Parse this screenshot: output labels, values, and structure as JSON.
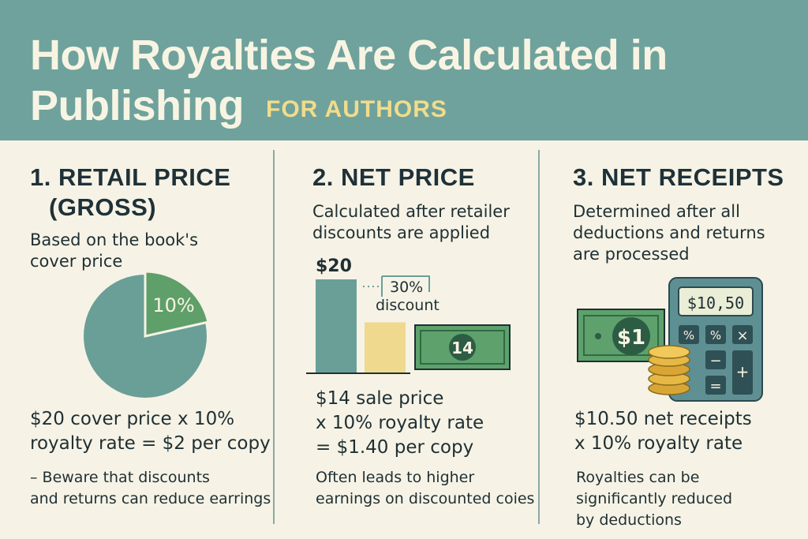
{
  "header": {
    "title_line1": "How Royalties Are Calculated in",
    "title_line2": "Publishing",
    "subtitle": "FOR AUTHORS"
  },
  "columns": [
    {
      "title_line1": "1. RETAIL PRICE",
      "title_line2": "(GROSS)",
      "description_lines": [
        "Based on the book's",
        "cover price"
      ],
      "graphic": {
        "pie_slice_label": "10%",
        "pie_slice_share": 0.1
      },
      "calc_lines": [
        "$20 cover price x 10%",
        "royalty rate = $2 per copy"
      ],
      "note_lines": [
        "– Beware that discounts",
        "and returns can reduce earrings"
      ]
    },
    {
      "title_line1": "2. NET PRICE",
      "description_lines": [
        "Calculated after retailer",
        "discounts are applied"
      ],
      "graphic": {
        "bar_full_label": "$20",
        "bar_full_value": 20,
        "bar_discounted_value": 14,
        "discount_pct_label": "30%",
        "discount_word": "discount",
        "banknote_label": "14"
      },
      "calc_lines": [
        "$14 sale price",
        "x 10% royalty rate",
        "= $1.40 per copy"
      ],
      "note_lines": [
        "Often leads to higher",
        "earnings on discounted coies"
      ]
    },
    {
      "title_line1": "3. NET RECEIPTS",
      "description_lines": [
        "Determined after all",
        "deductions and returns",
        "are processed"
      ],
      "graphic": {
        "banknote_label": "$1",
        "calculator_display": "$10,50",
        "calculator_keys": [
          "%",
          "%",
          "×",
          "−",
          "+",
          "="
        ]
      },
      "calc_lines": [
        "$10.50 net receipts",
        "x 10% royalty rate"
      ],
      "note_lines": [
        "Royalties can be",
        "significantly reduced",
        "by deductions"
      ]
    }
  ],
  "colors": {
    "header_bg": "#6fa29c",
    "accent_teal": "#6a9f98",
    "accent_green": "#5f9f6a",
    "accent_yellow": "#efd98e",
    "money_green": "#5ea16c",
    "calculator_body": "#5e8f93"
  }
}
